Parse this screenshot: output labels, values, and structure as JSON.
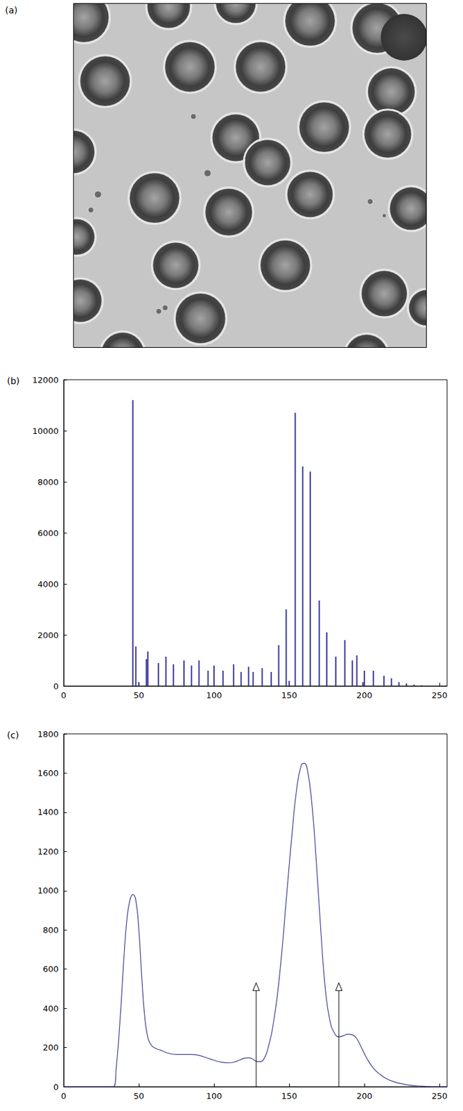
{
  "image": {
    "label": "(a)"
  },
  "chart_data": [
    {
      "type": "bar",
      "title": "(b)",
      "x": [
        46,
        48,
        50,
        55,
        56,
        63,
        68,
        73,
        80,
        85,
        90,
        96,
        100,
        106,
        113,
        118,
        123,
        126,
        132,
        138,
        143,
        148,
        150,
        154,
        159,
        164,
        170,
        175,
        181,
        187,
        192,
        195,
        199,
        200,
        206,
        213,
        218,
        223,
        228,
        233,
        238,
        243
      ],
      "values": [
        11200,
        1550,
        150,
        1050,
        1350,
        900,
        1150,
        850,
        1000,
        800,
        1000,
        600,
        800,
        600,
        850,
        550,
        750,
        550,
        700,
        550,
        1600,
        3000,
        200,
        10700,
        8600,
        8400,
        3350,
        2100,
        1150,
        1800,
        1000,
        1200,
        150,
        600,
        600,
        400,
        300,
        150,
        100,
        50,
        30,
        10
      ],
      "color": "#333399",
      "xlim": [
        0,
        255
      ],
      "xticks": [
        0,
        50,
        100,
        150,
        200,
        250
      ],
      "ylim": [
        0,
        12000
      ],
      "yticks": [
        0,
        2000,
        4000,
        6000,
        8000,
        10000,
        12000
      ]
    },
    {
      "type": "line",
      "title": "(c)",
      "x": [
        0,
        10,
        20,
        30,
        33,
        35,
        38,
        40,
        42,
        44,
        46,
        48,
        50,
        52,
        54,
        56,
        58,
        60,
        65,
        70,
        75,
        80,
        85,
        90,
        95,
        100,
        105,
        110,
        115,
        120,
        123,
        126,
        128,
        131,
        133,
        136,
        140,
        144,
        148,
        152,
        155,
        158,
        160,
        162,
        165,
        168,
        171,
        174,
        177,
        180,
        183,
        186,
        189,
        192,
        195,
        198,
        202,
        206,
        210,
        215,
        220,
        225,
        230,
        235,
        240,
        245,
        250,
        255
      ],
      "values": [
        0,
        0,
        0,
        0,
        0,
        100,
        400,
        650,
        850,
        950,
        980,
        950,
        800,
        550,
        350,
        250,
        215,
        200,
        185,
        170,
        165,
        165,
        165,
        160,
        148,
        135,
        125,
        122,
        130,
        145,
        148,
        140,
        130,
        128,
        140,
        200,
        350,
        600,
        950,
        1300,
        1520,
        1640,
        1650,
        1620,
        1450,
        1150,
        800,
        500,
        340,
        275,
        255,
        260,
        268,
        265,
        245,
        200,
        140,
        95,
        65,
        40,
        25,
        15,
        8,
        4,
        2,
        0,
        0,
        0
      ],
      "color": "#3c3c96",
      "xlim": [
        0,
        255
      ],
      "xticks": [
        0,
        50,
        100,
        150,
        200,
        250
      ],
      "ylim": [
        0,
        1800
      ],
      "yticks": [
        0,
        200,
        400,
        600,
        800,
        1000,
        1200,
        1400,
        1600,
        1800
      ],
      "arrows": [
        {
          "x": 128,
          "y": [
            0,
            510
          ]
        },
        {
          "x": 183,
          "y": [
            0,
            510
          ]
        }
      ]
    }
  ]
}
